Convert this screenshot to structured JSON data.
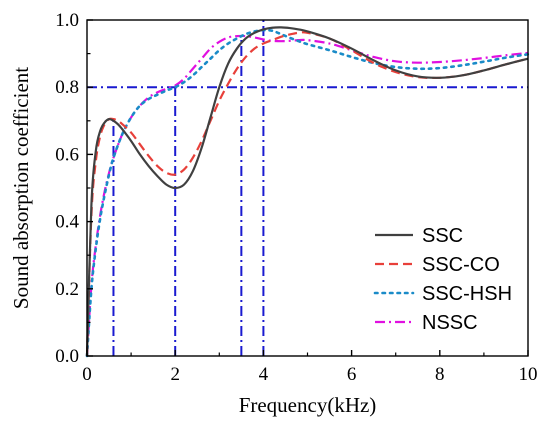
{
  "chart_data": {
    "type": "line",
    "xlabel": "Frequency(kHz)",
    "ylabel": "Sound absorption coefficient",
    "xlim": [
      0,
      10
    ],
    "ylim": [
      0,
      1.0
    ],
    "xticks": [
      "0",
      "2",
      "4",
      "6",
      "8",
      "10"
    ],
    "yticks": [
      "0.0",
      "0.2",
      "0.4",
      "0.6",
      "0.8",
      "1.0"
    ],
    "grid": false,
    "legend_position": "bottom-right",
    "series": [
      {
        "name": "SSC",
        "color": "#404040",
        "dash": "solid",
        "x": [
          0,
          0.1,
          0.2,
          0.3,
          0.4,
          0.5,
          0.6,
          0.7,
          0.8,
          1.0,
          1.2,
          1.4,
          1.6,
          1.8,
          2.0,
          2.2,
          2.4,
          2.6,
          2.8,
          3.0,
          3.2,
          3.4,
          3.6,
          3.8,
          4.0,
          4.2,
          4.4,
          4.6,
          4.8,
          5.0,
          5.5,
          6.0,
          6.5,
          7.0,
          7.5,
          8.0,
          8.5,
          9.0,
          9.5,
          10.0
        ],
        "y": [
          0.0,
          0.45,
          0.61,
          0.67,
          0.695,
          0.705,
          0.7,
          0.69,
          0.675,
          0.64,
          0.6,
          0.565,
          0.535,
          0.51,
          0.5,
          0.51,
          0.55,
          0.62,
          0.71,
          0.8,
          0.87,
          0.915,
          0.945,
          0.962,
          0.972,
          0.977,
          0.978,
          0.976,
          0.972,
          0.966,
          0.945,
          0.915,
          0.88,
          0.85,
          0.832,
          0.828,
          0.835,
          0.85,
          0.868,
          0.885
        ]
      },
      {
        "name": "SSC-CO",
        "color": "#e8403a",
        "dash": "dashed",
        "x": [
          0,
          0.1,
          0.2,
          0.3,
          0.4,
          0.5,
          0.6,
          0.7,
          0.8,
          1.0,
          1.2,
          1.4,
          1.6,
          1.8,
          2.0,
          2.2,
          2.4,
          2.6,
          2.8,
          3.0,
          3.2,
          3.4,
          3.6,
          3.8,
          4.0,
          4.2,
          4.4,
          4.6,
          4.8,
          5.0,
          5.5,
          6.0,
          6.5,
          7.0,
          7.5,
          8.0,
          8.5,
          9.0,
          9.5,
          10.0
        ],
        "y": [
          0.0,
          0.42,
          0.58,
          0.655,
          0.69,
          0.705,
          0.705,
          0.7,
          0.69,
          0.665,
          0.63,
          0.595,
          0.565,
          0.545,
          0.54,
          0.555,
          0.59,
          0.64,
          0.7,
          0.76,
          0.81,
          0.855,
          0.89,
          0.915,
          0.93,
          0.94,
          0.95,
          0.957,
          0.962,
          0.962,
          0.945,
          0.91,
          0.872,
          0.845,
          0.83,
          0.828,
          0.835,
          0.85,
          0.868,
          0.885
        ]
      },
      {
        "name": "SSC-HSH",
        "color": "#1a8bc8",
        "dash": "dotted",
        "x": [
          0,
          0.1,
          0.2,
          0.3,
          0.4,
          0.5,
          0.6,
          0.8,
          1.0,
          1.2,
          1.4,
          1.6,
          1.8,
          2.0,
          2.2,
          2.4,
          2.6,
          2.8,
          3.0,
          3.2,
          3.4,
          3.6,
          3.8,
          4.0,
          4.2,
          4.4,
          4.6,
          4.8,
          5.0,
          5.5,
          6.0,
          6.5,
          7.0,
          7.5,
          8.0,
          8.5,
          9.0,
          9.5,
          10.0
        ],
        "y": [
          0.0,
          0.2,
          0.32,
          0.41,
          0.48,
          0.54,
          0.59,
          0.66,
          0.71,
          0.745,
          0.765,
          0.778,
          0.79,
          0.8,
          0.815,
          0.835,
          0.86,
          0.885,
          0.91,
          0.93,
          0.945,
          0.958,
          0.966,
          0.97,
          0.968,
          0.958,
          0.947,
          0.937,
          0.928,
          0.91,
          0.89,
          0.872,
          0.86,
          0.855,
          0.857,
          0.865,
          0.876,
          0.888,
          0.898
        ]
      },
      {
        "name": "NSSC",
        "color": "#e010e0",
        "dash": "dashdot",
        "x": [
          0,
          0.1,
          0.2,
          0.3,
          0.4,
          0.5,
          0.6,
          0.8,
          1.0,
          1.2,
          1.4,
          1.6,
          1.8,
          2.0,
          2.2,
          2.4,
          2.6,
          2.8,
          3.0,
          3.2,
          3.4,
          3.6,
          3.8,
          4.0,
          4.2,
          4.4,
          4.6,
          4.8,
          5.0,
          5.5,
          6.0,
          6.5,
          7.0,
          7.5,
          8.0,
          8.5,
          9.0,
          9.5,
          10.0
        ],
        "y": [
          0.0,
          0.21,
          0.33,
          0.42,
          0.49,
          0.545,
          0.59,
          0.66,
          0.71,
          0.745,
          0.77,
          0.785,
          0.795,
          0.805,
          0.825,
          0.855,
          0.885,
          0.915,
          0.935,
          0.948,
          0.952,
          0.952,
          0.948,
          0.942,
          0.938,
          0.937,
          0.938,
          0.94,
          0.94,
          0.93,
          0.91,
          0.89,
          0.877,
          0.873,
          0.875,
          0.88,
          0.887,
          0.895,
          0.902
        ]
      }
    ],
    "reference_lines": {
      "color": "#1a1ad0",
      "horizontal": [
        {
          "y": 0.8,
          "x_from": 0,
          "x_to": 10
        }
      ],
      "vertical": [
        {
          "x": 0.6,
          "y_from": 0,
          "y_to": 0.7
        },
        {
          "x": 2.0,
          "y_from": 0,
          "y_to": 0.8
        },
        {
          "x": 3.5,
          "y_from": 0,
          "y_to": 0.95
        },
        {
          "x": 4.0,
          "y_from": 0,
          "y_to": 1.0
        }
      ]
    }
  }
}
